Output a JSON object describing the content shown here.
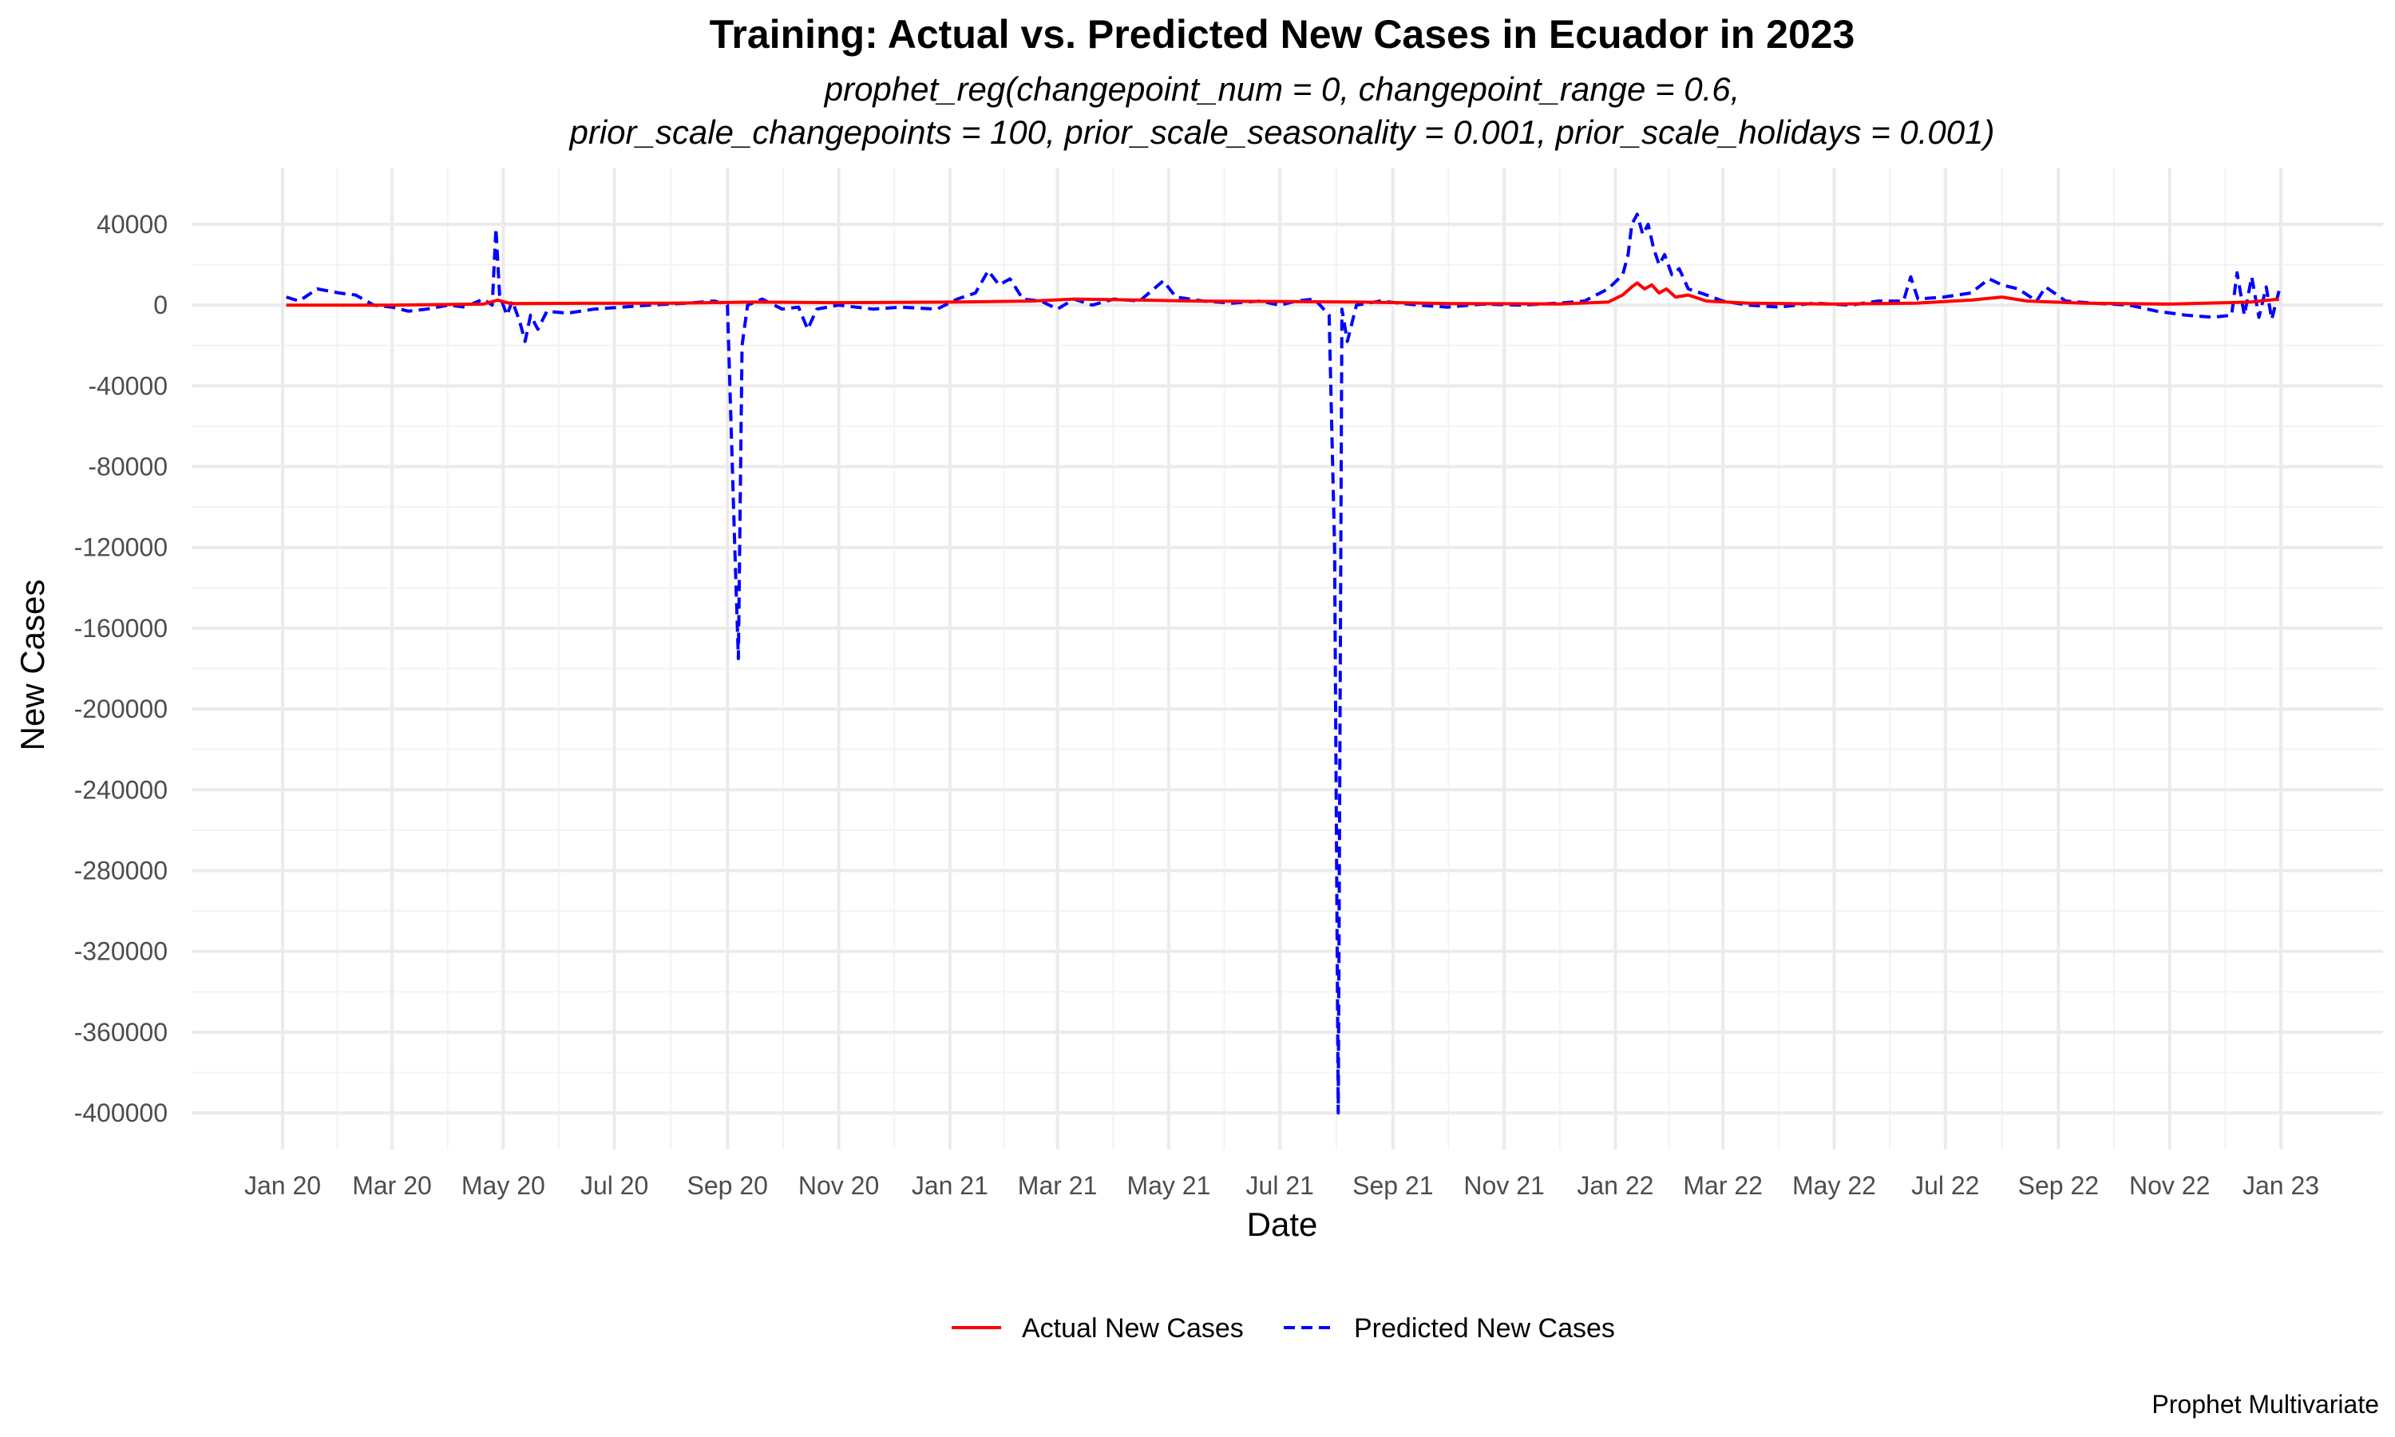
{
  "chart_data": {
    "type": "line",
    "title": "Training: Actual vs. Predicted New Cases in Ecuador in 2023",
    "subtitle": [
      "prophet_reg(changepoint_num = 0, changepoint_range = 0.6,",
      "prior_scale_changepoints = 100, prior_scale_seasonality = 0.001, prior_scale_holidays = 0.001)"
    ],
    "xlabel": "Date",
    "ylabel": "New Cases",
    "caption": "Prophet Multivariate",
    "xlim": [
      "2020-01-01",
      "2023-01-01"
    ],
    "ylim": [
      -400000,
      40000
    ],
    "x_ticks": [
      {
        "date": "2020-01-01",
        "label": "Jan 20"
      },
      {
        "date": "2020-03-01",
        "label": "Mar 20"
      },
      {
        "date": "2020-05-01",
        "label": "May 20"
      },
      {
        "date": "2020-07-01",
        "label": "Jul 20"
      },
      {
        "date": "2020-09-01",
        "label": "Sep 20"
      },
      {
        "date": "2020-11-01",
        "label": "Nov 20"
      },
      {
        "date": "2021-01-01",
        "label": "Jan 21"
      },
      {
        "date": "2021-03-01",
        "label": "Mar 21"
      },
      {
        "date": "2021-05-01",
        "label": "May 21"
      },
      {
        "date": "2021-07-01",
        "label": "Jul 21"
      },
      {
        "date": "2021-09-01",
        "label": "Sep 21"
      },
      {
        "date": "2021-11-01",
        "label": "Nov 21"
      },
      {
        "date": "2022-01-01",
        "label": "Jan 22"
      },
      {
        "date": "2022-03-01",
        "label": "Mar 22"
      },
      {
        "date": "2022-05-01",
        "label": "May 22"
      },
      {
        "date": "2022-07-01",
        "label": "Jul 22"
      },
      {
        "date": "2022-09-01",
        "label": "Sep 22"
      },
      {
        "date": "2022-11-01",
        "label": "Nov 22"
      },
      {
        "date": "2023-01-01",
        "label": "Jan 23"
      }
    ],
    "y_ticks": [
      40000,
      0,
      -40000,
      -80000,
      -120000,
      -160000,
      -200000,
      -240000,
      -280000,
      -320000,
      -360000,
      -400000
    ],
    "grid": true,
    "legend_position": "bottom",
    "series": [
      {
        "name": "Actual New Cases",
        "color": "#ff0000",
        "dash": "solid",
        "points": [
          [
            "2020-01-03",
            0
          ],
          [
            "2020-03-01",
            0
          ],
          [
            "2020-04-20",
            500
          ],
          [
            "2020-04-28",
            2500
          ],
          [
            "2020-05-05",
            800
          ],
          [
            "2020-06-15",
            900
          ],
          [
            "2020-08-01",
            1000
          ],
          [
            "2020-09-15",
            1500
          ],
          [
            "2020-11-01",
            1200
          ],
          [
            "2021-01-01",
            1500
          ],
          [
            "2021-02-15",
            2000
          ],
          [
            "2021-03-10",
            3000
          ],
          [
            "2021-04-15",
            2500
          ],
          [
            "2021-05-15",
            2000
          ],
          [
            "2021-07-01",
            1800
          ],
          [
            "2021-08-15",
            1500
          ],
          [
            "2021-10-01",
            800
          ],
          [
            "2021-12-01",
            600
          ],
          [
            "2021-12-28",
            1500
          ],
          [
            "2022-01-05",
            5000
          ],
          [
            "2022-01-10",
            9000
          ],
          [
            "2022-01-13",
            11000
          ],
          [
            "2022-01-17",
            8000
          ],
          [
            "2022-01-21",
            10000
          ],
          [
            "2022-01-25",
            6000
          ],
          [
            "2022-01-29",
            8000
          ],
          [
            "2022-02-03",
            4000
          ],
          [
            "2022-02-10",
            5000
          ],
          [
            "2022-02-20",
            2000
          ],
          [
            "2022-03-15",
            1000
          ],
          [
            "2022-05-01",
            500
          ],
          [
            "2022-06-15",
            1000
          ],
          [
            "2022-07-15",
            2500
          ],
          [
            "2022-08-01",
            4000
          ],
          [
            "2022-08-15",
            2000
          ],
          [
            "2022-09-15",
            1000
          ],
          [
            "2022-11-01",
            500
          ],
          [
            "2022-12-15",
            1500
          ],
          [
            "2022-12-31",
            3000
          ]
        ]
      },
      {
        "name": "Predicted New Cases",
        "color": "#0000ff",
        "dash": "dashed",
        "points": [
          [
            "2020-01-03",
            4000
          ],
          [
            "2020-01-10",
            2000
          ],
          [
            "2020-01-20",
            8000
          ],
          [
            "2020-02-01",
            6000
          ],
          [
            "2020-02-10",
            5000
          ],
          [
            "2020-02-20",
            0
          ],
          [
            "2020-03-01",
            -1000
          ],
          [
            "2020-03-10",
            -3000
          ],
          [
            "2020-03-20",
            -2000
          ],
          [
            "2020-04-01",
            0
          ],
          [
            "2020-04-10",
            -1000
          ],
          [
            "2020-04-20",
            3000
          ],
          [
            "2020-04-25",
            0
          ],
          [
            "2020-04-27",
            38000
          ],
          [
            "2020-04-29",
            5000
          ],
          [
            "2020-05-03",
            -5000
          ],
          [
            "2020-05-06",
            2000
          ],
          [
            "2020-05-10",
            -8000
          ],
          [
            "2020-05-13",
            -18000
          ],
          [
            "2020-05-16",
            -5000
          ],
          [
            "2020-05-20",
            -12000
          ],
          [
            "2020-05-25",
            -3000
          ],
          [
            "2020-06-05",
            -4000
          ],
          [
            "2020-06-20",
            -2000
          ],
          [
            "2020-07-05",
            -1000
          ],
          [
            "2020-07-20",
            0
          ],
          [
            "2020-08-10",
            1000
          ],
          [
            "2020-08-25",
            2000
          ],
          [
            "2020-09-01",
            0
          ],
          [
            "2020-09-03",
            -60000
          ],
          [
            "2020-09-05",
            -120000
          ],
          [
            "2020-09-07",
            -175000
          ],
          [
            "2020-09-09",
            -20000
          ],
          [
            "2020-09-12",
            0
          ],
          [
            "2020-09-20",
            3000
          ],
          [
            "2020-10-01",
            -2000
          ],
          [
            "2020-10-10",
            -1000
          ],
          [
            "2020-10-15",
            -12000
          ],
          [
            "2020-10-20",
            -2000
          ],
          [
            "2020-11-01",
            0
          ],
          [
            "2020-11-20",
            -2000
          ],
          [
            "2020-12-05",
            -1000
          ],
          [
            "2020-12-25",
            -2000
          ],
          [
            "2021-01-05",
            3000
          ],
          [
            "2021-01-15",
            6000
          ],
          [
            "2021-01-22",
            17000
          ],
          [
            "2021-01-28",
            10000
          ],
          [
            "2021-02-03",
            13000
          ],
          [
            "2021-02-10",
            3000
          ],
          [
            "2021-02-20",
            2000
          ],
          [
            "2021-03-01",
            -2000
          ],
          [
            "2021-03-10",
            3000
          ],
          [
            "2021-03-20",
            0
          ],
          [
            "2021-04-01",
            3000
          ],
          [
            "2021-04-15",
            2000
          ],
          [
            "2021-04-28",
            12000
          ],
          [
            "2021-05-05",
            4000
          ],
          [
            "2021-05-20",
            2000
          ],
          [
            "2021-06-05",
            1000
          ],
          [
            "2021-06-20",
            2000
          ],
          [
            "2021-07-01",
            0
          ],
          [
            "2021-07-10",
            2000
          ],
          [
            "2021-07-20",
            3000
          ],
          [
            "2021-07-28",
            -5000
          ],
          [
            "2021-07-31",
            -120000
          ],
          [
            "2021-08-02",
            -400000
          ],
          [
            "2021-08-04",
            -2000
          ],
          [
            "2021-08-07",
            -18000
          ],
          [
            "2021-08-12",
            0
          ],
          [
            "2021-08-25",
            2000
          ],
          [
            "2021-09-15",
            0
          ],
          [
            "2021-10-01",
            -1000
          ],
          [
            "2021-10-20",
            500
          ],
          [
            "2021-11-10",
            0
          ],
          [
            "2021-12-01",
            1000
          ],
          [
            "2021-12-15",
            2000
          ],
          [
            "2021-12-28",
            8000
          ],
          [
            "2022-01-05",
            15000
          ],
          [
            "2022-01-08",
            25000
          ],
          [
            "2022-01-10",
            40000
          ],
          [
            "2022-01-13",
            45000
          ],
          [
            "2022-01-16",
            35000
          ],
          [
            "2022-01-19",
            40000
          ],
          [
            "2022-01-22",
            28000
          ],
          [
            "2022-01-25",
            20000
          ],
          [
            "2022-01-28",
            25000
          ],
          [
            "2022-02-01",
            15000
          ],
          [
            "2022-02-05",
            18000
          ],
          [
            "2022-02-10",
            8000
          ],
          [
            "2022-02-20",
            5000
          ],
          [
            "2022-03-01",
            2000
          ],
          [
            "2022-03-15",
            0
          ],
          [
            "2022-04-01",
            -1000
          ],
          [
            "2022-04-20",
            1000
          ],
          [
            "2022-05-10",
            0
          ],
          [
            "2022-05-25",
            2000
          ],
          [
            "2022-06-08",
            2000
          ],
          [
            "2022-06-12",
            14000
          ],
          [
            "2022-06-16",
            3000
          ],
          [
            "2022-06-30",
            4000
          ],
          [
            "2022-07-15",
            6000
          ],
          [
            "2022-07-25",
            13000
          ],
          [
            "2022-08-01",
            10000
          ],
          [
            "2022-08-10",
            8000
          ],
          [
            "2022-08-20",
            2000
          ],
          [
            "2022-08-25",
            9000
          ],
          [
            "2022-09-05",
            2000
          ],
          [
            "2022-09-20",
            1000
          ],
          [
            "2022-10-10",
            0
          ],
          [
            "2022-10-25",
            -3000
          ],
          [
            "2022-11-10",
            -5000
          ],
          [
            "2022-11-25",
            -6000
          ],
          [
            "2022-12-05",
            -5000
          ],
          [
            "2022-12-08",
            16000
          ],
          [
            "2022-12-12",
            -5000
          ],
          [
            "2022-12-16",
            14000
          ],
          [
            "2022-12-20",
            -6000
          ],
          [
            "2022-12-24",
            9000
          ],
          [
            "2022-12-27",
            -7000
          ],
          [
            "2022-12-31",
            7000
          ]
        ]
      }
    ]
  }
}
